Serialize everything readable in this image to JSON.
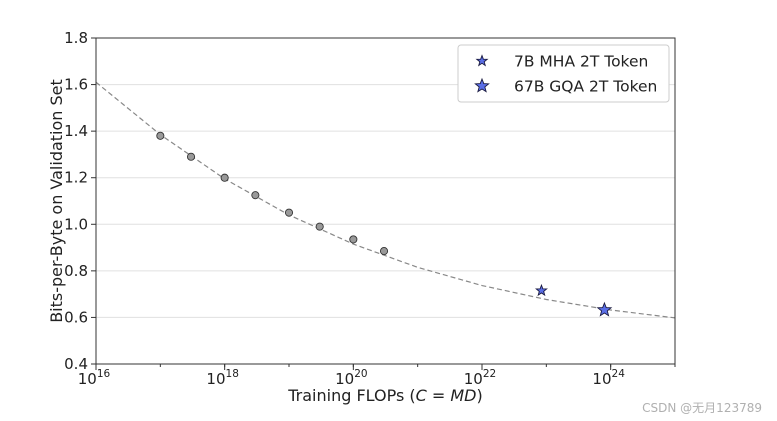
{
  "chart_data": {
    "type": "scatter",
    "xlabel": "Training FLOPs (C = MD)",
    "xlabel_parts": {
      "prefix": "Training FLOPs (",
      "c": "C",
      "eq": " = ",
      "md": "MD",
      "suffix": ")"
    },
    "ylabel": "Bits-per-Byte on Validation Set",
    "xscale": "log10",
    "xlim": [
      1e+16,
      1e+25
    ],
    "ylim": [
      0.4,
      1.8
    ],
    "x_ticks": [
      1e+16,
      1e+18,
      1e+20,
      1e+22,
      1e+24
    ],
    "x_tick_labels": [
      {
        "base": "10",
        "exp": "16"
      },
      {
        "base": "10",
        "exp": "18"
      },
      {
        "base": "10",
        "exp": "20"
      },
      {
        "base": "10",
        "exp": "22"
      },
      {
        "base": "10",
        "exp": "24"
      }
    ],
    "y_ticks": [
      0.4,
      0.6,
      0.8,
      1.0,
      1.2,
      1.4,
      1.6,
      1.8
    ],
    "y_tick_labels": [
      "0.4",
      "0.6",
      "0.8",
      "1.0",
      "1.2",
      "1.4",
      "1.6",
      "1.8"
    ],
    "grid": "horizontal",
    "legend_position": "top-right",
    "fit_curve": {
      "style": "dashed",
      "color": "#888888",
      "x": [
        1e+16,
        1e+17,
        1e+18,
        1e+19,
        1e+20,
        1e+21,
        1e+22,
        1e+23,
        1e+24,
        1e+25
      ],
      "y": [
        1.61,
        1.385,
        1.195,
        1.04,
        0.915,
        0.815,
        0.737,
        0.677,
        0.632,
        0.598
      ]
    },
    "series": [
      {
        "marker": "circle",
        "color": "#999999",
        "x": [
          1e+17,
          3e+17,
          1e+18,
          3e+18,
          1e+19,
          3e+19,
          1e+20,
          3e+20
        ],
        "y": [
          1.38,
          1.29,
          1.2,
          1.125,
          1.05,
          0.99,
          0.935,
          0.885
        ]
      },
      {
        "name": "7B MHA 2T Token",
        "marker": "star-small",
        "color": "#5a6ee6",
        "x": [
          8.4e+22
        ],
        "y": [
          0.715
        ]
      },
      {
        "name": "67B GQA 2T Token",
        "marker": "star-large",
        "color": "#5a6ee6",
        "x": [
          8e+23
        ],
        "y": [
          0.632
        ]
      }
    ]
  },
  "watermark": "CSDN @无月123789"
}
